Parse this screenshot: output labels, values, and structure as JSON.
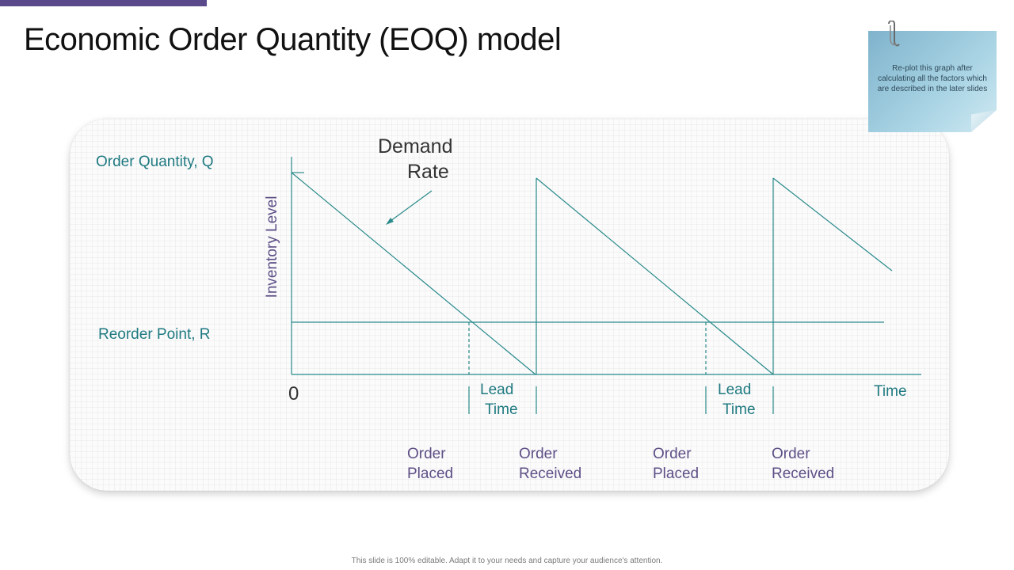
{
  "slide": {
    "title": "Economic Order Quantity (EOQ) model",
    "footer": "This slide is 100% editable. Adapt it to your needs and capture your audience's attention."
  },
  "note": {
    "text": "Re-plot this graph after calculating all the factors which are described in the later slides"
  },
  "diagram": {
    "order_quantity_label": "Order Quantity, Q",
    "reorder_point_label": "Reorder Point, R",
    "y_axis_label": "Inventory Level",
    "origin_label": "0",
    "demand_rate_line1": "Demand",
    "demand_rate_line2": "Rate",
    "x_axis_label": "Time",
    "lead_time_1_line1": "Lead",
    "lead_time_1_line2": "Time",
    "lead_time_2_line1": "Lead",
    "lead_time_2_line2": "Time",
    "order_placed_1_line1": "Order",
    "order_placed_1_line2": "Placed",
    "order_received_1_line1": "Order",
    "order_received_1_line2": "Received",
    "order_placed_2_line1": "Order",
    "order_placed_2_line2": "Placed",
    "order_received_2_line1": "Order",
    "order_received_2_line2": "Received"
  },
  "colors": {
    "accent": "#5b4a8b",
    "teal": "#1f7a80",
    "purple_text": "#5e4f86",
    "note": "#a9d4e4"
  }
}
